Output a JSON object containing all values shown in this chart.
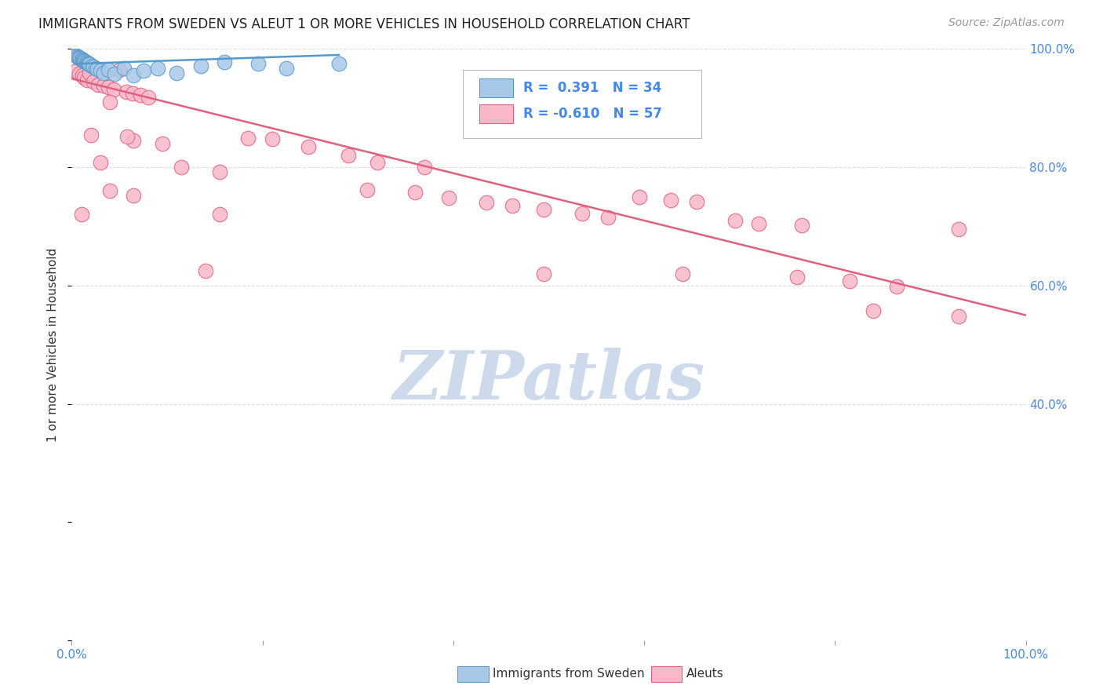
{
  "title": "IMMIGRANTS FROM SWEDEN VS ALEUT 1 OR MORE VEHICLES IN HOUSEHOLD CORRELATION CHART",
  "source": "Source: ZipAtlas.com",
  "ylabel": "1 or more Vehicles in Household",
  "xlim": [
    0,
    1.0
  ],
  "ylim": [
    0,
    1.0
  ],
  "blue_label": "Immigrants from Sweden",
  "pink_label": "Aleuts",
  "blue_R": "0.391",
  "blue_N": "34",
  "pink_R": "-0.610",
  "pink_N": "57",
  "blue_fill": "#a8c8e8",
  "blue_edge": "#5599cc",
  "pink_fill": "#f8b8c8",
  "pink_edge": "#e06080",
  "blue_line": "#5599cc",
  "pink_line": "#e06080",
  "bg_color": "#ffffff",
  "grid_color": "#dddddd",
  "watermark": "ZIPatlas",
  "watermark_color": "#ccdaeb",
  "title_color": "#222222",
  "source_color": "#999999",
  "axis_tick_color": "#4488ee",
  "label_color": "#333333",
  "blue_dots": [
    [
      0.003,
      0.99
    ],
    [
      0.005,
      0.988
    ],
    [
      0.006,
      0.987
    ],
    [
      0.007,
      0.986
    ],
    [
      0.008,
      0.985
    ],
    [
      0.009,
      0.984
    ],
    [
      0.01,
      0.983
    ],
    [
      0.011,
      0.982
    ],
    [
      0.012,
      0.981
    ],
    [
      0.013,
      0.98
    ],
    [
      0.014,
      0.979
    ],
    [
      0.015,
      0.978
    ],
    [
      0.016,
      0.977
    ],
    [
      0.017,
      0.976
    ],
    [
      0.018,
      0.975
    ],
    [
      0.019,
      0.974
    ],
    [
      0.021,
      0.972
    ],
    [
      0.023,
      0.97
    ],
    [
      0.025,
      0.968
    ],
    [
      0.027,
      0.966
    ],
    [
      0.03,
      0.963
    ],
    [
      0.033,
      0.96
    ],
    [
      0.038,
      0.965
    ],
    [
      0.045,
      0.958
    ],
    [
      0.055,
      0.968
    ],
    [
      0.065,
      0.955
    ],
    [
      0.075,
      0.963
    ],
    [
      0.09,
      0.968
    ],
    [
      0.11,
      0.96
    ],
    [
      0.135,
      0.972
    ],
    [
      0.16,
      0.978
    ],
    [
      0.195,
      0.975
    ],
    [
      0.225,
      0.968
    ],
    [
      0.28,
      0.975
    ]
  ],
  "pink_dots": [
    [
      0.005,
      0.963
    ],
    [
      0.008,
      0.958
    ],
    [
      0.011,
      0.955
    ],
    [
      0.013,
      0.952
    ],
    [
      0.016,
      0.948
    ],
    [
      0.019,
      0.96
    ],
    [
      0.023,
      0.945
    ],
    [
      0.028,
      0.94
    ],
    [
      0.033,
      0.938
    ],
    [
      0.038,
      0.935
    ],
    [
      0.044,
      0.932
    ],
    [
      0.05,
      0.965
    ],
    [
      0.057,
      0.928
    ],
    [
      0.064,
      0.925
    ],
    [
      0.072,
      0.922
    ],
    [
      0.08,
      0.918
    ],
    [
      0.02,
      0.855
    ],
    [
      0.04,
      0.91
    ],
    [
      0.065,
      0.845
    ],
    [
      0.095,
      0.84
    ],
    [
      0.03,
      0.808
    ],
    [
      0.058,
      0.852
    ],
    [
      0.115,
      0.8
    ],
    [
      0.155,
      0.792
    ],
    [
      0.185,
      0.85
    ],
    [
      0.21,
      0.848
    ],
    [
      0.248,
      0.835
    ],
    [
      0.29,
      0.82
    ],
    [
      0.32,
      0.808
    ],
    [
      0.37,
      0.8
    ],
    [
      0.01,
      0.72
    ],
    [
      0.04,
      0.76
    ],
    [
      0.065,
      0.752
    ],
    [
      0.31,
      0.762
    ],
    [
      0.36,
      0.758
    ],
    [
      0.395,
      0.748
    ],
    [
      0.435,
      0.74
    ],
    [
      0.462,
      0.735
    ],
    [
      0.495,
      0.728
    ],
    [
      0.535,
      0.722
    ],
    [
      0.562,
      0.715
    ],
    [
      0.595,
      0.75
    ],
    [
      0.628,
      0.745
    ],
    [
      0.655,
      0.742
    ],
    [
      0.695,
      0.71
    ],
    [
      0.72,
      0.705
    ],
    [
      0.765,
      0.702
    ],
    [
      0.93,
      0.695
    ],
    [
      0.14,
      0.625
    ],
    [
      0.155,
      0.72
    ],
    [
      0.495,
      0.62
    ],
    [
      0.64,
      0.62
    ],
    [
      0.76,
      0.615
    ],
    [
      0.815,
      0.608
    ],
    [
      0.865,
      0.598
    ],
    [
      0.84,
      0.558
    ],
    [
      0.93,
      0.548
    ]
  ],
  "pink_line_x0": 0.0,
  "pink_line_y0": 0.95,
  "pink_line_x1": 1.0,
  "pink_line_y1": 0.55,
  "blue_line_x0": 0.003,
  "blue_line_y0": 0.975,
  "blue_line_x1": 0.28,
  "blue_line_y1": 0.99
}
